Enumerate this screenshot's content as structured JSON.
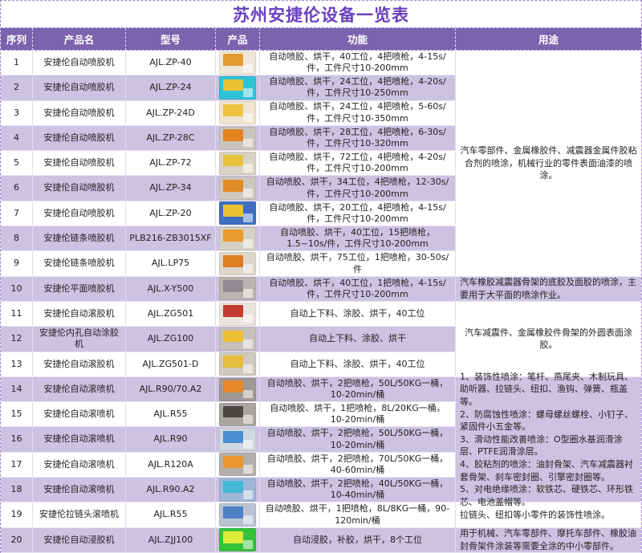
{
  "title": "苏州安捷伦设备一览表",
  "colors": {
    "header_bg": "#7B63AD",
    "stripe_row_bg": "#CCC2E2",
    "title_text": "#6B3FC0",
    "border_dashed": "#9C86C9"
  },
  "table": {
    "columns": [
      "序列",
      "产品名",
      "型号",
      "产品",
      "功能",
      "用途"
    ],
    "rows": [
      {
        "serial": "1",
        "name": "安捷伦自动喷胶机",
        "model": "AJL.ZP-40",
        "photo": "machine-photo",
        "photo_colors": [
          "#efe7d8",
          "#e09a30"
        ],
        "function": "自动喷胶、烘干，40工位，4把喷枪，4-15s/件，工件尺寸10-200mm"
      },
      {
        "serial": "2",
        "name": "安捷伦自动喷胶机",
        "model": "AJL.ZP-24",
        "photo": "machine-photo",
        "photo_colors": [
          "#2fc3d8",
          "#e8c232"
        ],
        "function": "自动喷胶、烘干，24工位，4把喷枪，4-20s/件，工件尺寸10-250mm"
      },
      {
        "serial": "3",
        "name": "安捷伦自动喷胶机",
        "model": "AJL.ZP-24D",
        "photo": "machine-photo",
        "photo_colors": [
          "#efe4cf",
          "#eec23e"
        ],
        "function": "自动喷胶、烘干，24工位，4把喷枪，5-60s/件，工件尺寸10-350mm"
      },
      {
        "serial": "4",
        "name": "安捷伦自动喷胶机",
        "model": "AJL.ZP-28C",
        "photo": "machine-photo",
        "photo_colors": [
          "#c9c5be",
          "#e2831f"
        ],
        "function": "自动喷胶、烘干，28工位，4把喷枪，6-30s/件，工件尺寸10-320mm"
      },
      {
        "serial": "5",
        "name": "安捷伦自动喷胶机",
        "model": "AJL.ZP-72",
        "photo": "machine-photo",
        "photo_colors": [
          "#d9d3c5",
          "#e6c33c"
        ],
        "function": "自动喷胶、烘干，72工位，4把喷枪，4-20s/件，工件尺寸10-200mm"
      },
      {
        "serial": "6",
        "name": "安捷伦自动喷胶机",
        "model": "AJL.ZP-34",
        "photo": "machine-photo",
        "photo_colors": [
          "#cdc8bf",
          "#e28a25"
        ],
        "function": "自动喷胶、烘干，34工位，4把喷枪，12-30s/件，工件尺寸10-200mm"
      },
      {
        "serial": "7",
        "name": "安捷伦自动喷胶机",
        "model": "AJL.ZP-20",
        "photo": "machine-photo",
        "photo_colors": [
          "#3f6fc0",
          "#e8c232"
        ],
        "function": "自动喷胶、烘干，20工位，4把喷枪，4-15s/件，工件尺寸10-200mm"
      },
      {
        "serial": "8",
        "name": "安捷伦链条喷胶机",
        "model": "PLB216-ZB3015XF",
        "photo": "machine-photo",
        "photo_colors": [
          "#d5d0c6",
          "#e89a2a"
        ],
        "function": "自动喷胶、烘干，40工位，15把喷枪，1.5~10s/件，工件尺寸10-200mm"
      },
      {
        "serial": "9",
        "name": "安捷伦链条喷胶机",
        "model": "AJL.LP75",
        "photo": "machine-photo",
        "photo_colors": [
          "#ddd6c9",
          "#df7d22"
        ],
        "function": "自动喷胶、烘干，75工位，1把喷枪，30-50s/件"
      },
      {
        "serial": "10",
        "name": "安捷伦平面喷胶机",
        "model": "AJL.X-Y500",
        "photo": "machine-photo",
        "photo_colors": [
          "#b9b5ae",
          "#8f8b90"
        ],
        "function": "自动喷胶、烘干，40工位，1把喷枪，4-15s/件，工件尺寸10-200mm"
      },
      {
        "serial": "11",
        "name": "安捷伦自动滚胶机",
        "model": "AJL.ZG501",
        "photo": "machine-photo",
        "photo_colors": [
          "#e9e5dd",
          "#c23a30"
        ],
        "function": "自动上下料、涂胶、烘干，40工位"
      },
      {
        "serial": "12",
        "name": "安捷伦内孔自动涂胶机",
        "model": "AJL.ZG100",
        "photo": "machine-photo",
        "photo_colors": [
          "#c4c0ba",
          "#ecc133"
        ],
        "function": "自动上下料、涂胶、烘干"
      },
      {
        "serial": "13",
        "name": "安捷伦自动滚胶机",
        "model": "AJL.ZG501-D",
        "photo": "machine-photo",
        "photo_colors": [
          "#cfc9be",
          "#e5bd3a"
        ],
        "function": "自动上下料、涂胶、烘干，40工位"
      },
      {
        "serial": "14",
        "name": "安捷伦自动滚喷机",
        "model": "AJL.R90/70.A2",
        "photo": "machine-photo",
        "photo_colors": [
          "#9d9a97",
          "#e8862b"
        ],
        "function": "自动喷胶、烘干，2把喷枪，50L/50KG一桶，10-20min/桶"
      },
      {
        "serial": "15",
        "name": "安捷伦自动滚喷机",
        "model": "AJL.R55",
        "photo": "machine-photo",
        "photo_colors": [
          "#a9a5a1",
          "#4a4745"
        ],
        "function": "自动喷胶、烘干，1把喷枪，8L/20KG一桶，10-20min/桶"
      },
      {
        "serial": "16",
        "name": "安捷伦自动滚喷机",
        "model": "AJL.R90",
        "photo": "machine-photo",
        "photo_colors": [
          "#cfd7df",
          "#4a8fd0"
        ],
        "function": "自动喷胶、烘干，2把喷枪，50L/50KG一桶，10-20min/桶"
      },
      {
        "serial": "17",
        "name": "安捷伦自动滚喷机",
        "model": "AJL.R120A",
        "photo": "machine-photo",
        "photo_colors": [
          "#b3afab",
          "#e8962d"
        ],
        "function": "自动喷胶、烘干，2把喷枪，70L/50KG一桶，40-60min/桶"
      },
      {
        "serial": "18",
        "name": "安捷伦自动滚喷机",
        "model": "AJL.R90.A2",
        "photo": "machine-photo",
        "photo_colors": [
          "#9fb6d8",
          "#45b8d8"
        ],
        "function": "自动喷胶、烘干，2把喷枪，40L/50KG一桶，10-40min/桶"
      },
      {
        "serial": "19",
        "name": "安捷伦拉链头滚喷机",
        "model": "AJL.R55",
        "photo": "machine-photo",
        "photo_colors": [
          "#b9c2d2",
          "#4f7fc4"
        ],
        "function": "自动喷胶、烘干，1把喷枪，8L/8KG一桶，90-120min/桶"
      },
      {
        "serial": "20",
        "name": "安捷伦自动浸胶机",
        "model": "AJL.ZJJ100",
        "photo": "machine-photo",
        "photo_colors": [
          "#35c23a",
          "#ddeb3a"
        ],
        "function": "自动浸胶，补胶，烘干，8个工位"
      }
    ],
    "usage_groups": [
      {
        "start": 1,
        "end": 9,
        "align": "center",
        "shaded": false,
        "text": "汽车零部件、金属橡胶件、减震器金属件胶粘合剂的喷涂，机械行业的零件表面油漆的喷涂。"
      },
      {
        "start": 10,
        "end": 10,
        "align": "left",
        "shaded": true,
        "text": "汽车橡胶减震器骨架的底胶及面胶的喷涂，主要用于大平面的喷涂作业。"
      },
      {
        "start": 11,
        "end": 13,
        "align": "center",
        "shaded": false,
        "text": "汽车减震件、金属橡胶件骨架的外圆表面涂胶。"
      },
      {
        "start": 14,
        "end": 18,
        "align": "left",
        "shaded": true,
        "lines": [
          "1、装饰性喷涂：笔杆、燕尾夹、木制玩具、助听器、拉链头、纽扣、渔钩、弹簧、瓶盖等。",
          "2、防腐蚀性喷涂：螺母螺丝螺栓、小钉子、紧固件小五金等。",
          "3、滑动性能改善喷涂：O型圈水基润滑涂层、PTFE润滑涂层。",
          "4、胶粘剂的喷涂：油封骨架、汽车减震器衬套骨架、刹车密封圈、引擎密封圈等。",
          "5、对电绝缘喷涂：软铁芯、硬铁芯、环形铁芯、电池盖帽等。"
        ]
      },
      {
        "start": 19,
        "end": 19,
        "align": "left",
        "shaded": false,
        "text": "拉链头、纽扣等小零件的装饰性喷涂。"
      },
      {
        "start": 20,
        "end": 20,
        "align": "left",
        "shaded": true,
        "text": "用于机械、汽车零部件、摩托车部件、橡胶油封骨架件涂装等需要全涂的中小零部件。"
      }
    ]
  }
}
